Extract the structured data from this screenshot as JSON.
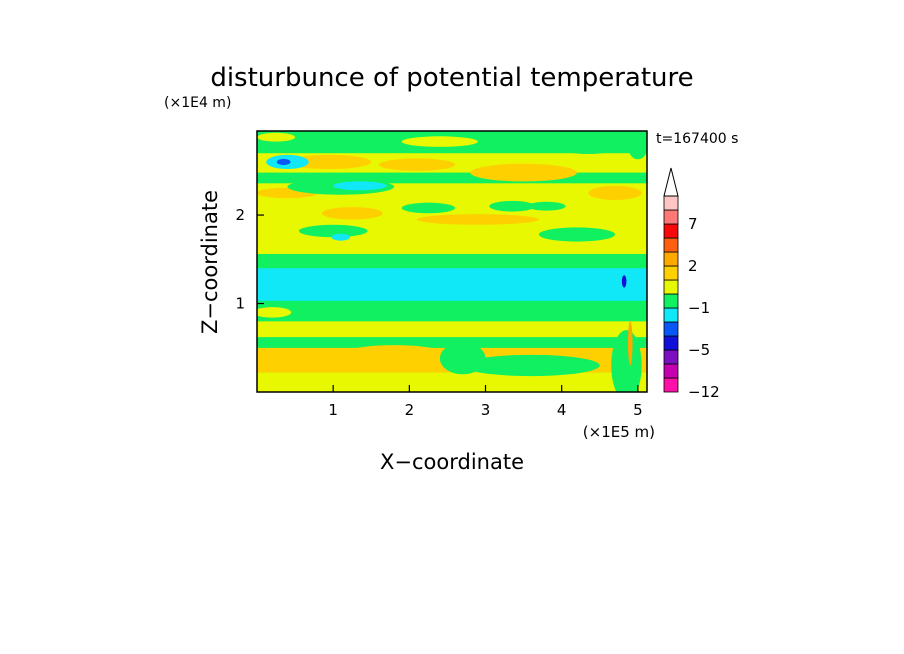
{
  "chart_data": {
    "type": "heatmap",
    "title": "disturbunce of potential temperature",
    "xlabel": "X−coordinate",
    "ylabel": "Z−coordinate",
    "x_scale_label": "(×1E5 m)",
    "y_scale_label": "(×1E4 m)",
    "time_label": "t=167400 s",
    "xlim": [
      0,
      5.12
    ],
    "ylim": [
      0,
      2.95
    ],
    "x_ticks": [
      {
        "value": 1,
        "label": "1"
      },
      {
        "value": 2,
        "label": "2"
      },
      {
        "value": 3,
        "label": "3"
      },
      {
        "value": 4,
        "label": "4"
      },
      {
        "value": 5,
        "label": "5"
      }
    ],
    "y_ticks": [
      {
        "value": 1,
        "label": "1"
      },
      {
        "value": 2,
        "label": "2"
      }
    ],
    "colorbar": {
      "extend_max": true,
      "levels": [
        {
          "color": "#ff10a8"
        },
        {
          "color": "#c400b0"
        },
        {
          "color": "#7a10c0"
        },
        {
          "color": "#1010d8"
        },
        {
          "color": "#0858f8"
        },
        {
          "color": "#10e8f8"
        },
        {
          "color": "#10f060"
        },
        {
          "color": "#e8f800"
        },
        {
          "color": "#ffd000"
        },
        {
          "color": "#ffa800"
        },
        {
          "color": "#ff6010"
        },
        {
          "color": "#f80808"
        },
        {
          "color": "#ff7878"
        },
        {
          "color": "#ffc4c4"
        }
      ],
      "tick_labels": [
        {
          "after_level": 0,
          "label": "−12"
        },
        {
          "after_level": 3,
          "label": "−5"
        },
        {
          "after_level": 6,
          "label": "−1"
        },
        {
          "after_level": 9,
          "label": "2"
        },
        {
          "after_level": 12,
          "label": "7"
        }
      ]
    },
    "bands": [
      {
        "z0": 0.0,
        "z1": 2.95,
        "color": "#10f060"
      },
      {
        "z0": 0.0,
        "z1": 0.22,
        "color": "#e8f800"
      },
      {
        "z0": 0.22,
        "z1": 0.5,
        "color": "#ffd000"
      },
      {
        "z0": 0.5,
        "z1": 0.62,
        "color": "#10f060"
      },
      {
        "z0": 0.62,
        "z1": 0.8,
        "color": "#e8f800"
      },
      {
        "z0": 0.8,
        "z1": 1.03,
        "color": "#10f060"
      },
      {
        "z0": 1.03,
        "z1": 1.4,
        "color": "#10e8f8"
      },
      {
        "z0": 1.4,
        "z1": 1.56,
        "color": "#10f060"
      },
      {
        "z0": 1.56,
        "z1": 2.36,
        "color": "#e8f800"
      },
      {
        "z0": 2.36,
        "z1": 2.48,
        "color": "#10f060"
      },
      {
        "z0": 2.48,
        "z1": 2.7,
        "color": "#e8f800"
      },
      {
        "z0": 2.7,
        "z1": 2.95,
        "color": "#10f060"
      }
    ],
    "blobs": [
      {
        "x": 0.65,
        "z": 0.4,
        "rx": 0.65,
        "rz": 0.09,
        "color": "#ffd000"
      },
      {
        "x": 1.8,
        "z": 0.45,
        "rx": 0.6,
        "rz": 0.08,
        "color": "#ffd000"
      },
      {
        "x": 3.6,
        "z": 0.3,
        "rx": 0.9,
        "rz": 0.12,
        "color": "#10f060"
      },
      {
        "x": 2.7,
        "z": 0.38,
        "rx": 0.3,
        "rz": 0.18,
        "color": "#10f060"
      },
      {
        "x": 4.85,
        "z": 0.3,
        "rx": 0.2,
        "rz": 0.4,
        "color": "#10f060"
      },
      {
        "x": 4.9,
        "z": 0.55,
        "rx": 0.03,
        "rz": 0.25,
        "color": "#ffa800"
      },
      {
        "x": 0.2,
        "z": 0.9,
        "rx": 0.25,
        "rz": 0.06,
        "color": "#e8f800"
      },
      {
        "x": 4.82,
        "z": 1.25,
        "rx": 0.03,
        "rz": 0.07,
        "color": "#1010d8"
      },
      {
        "x": 1.0,
        "z": 1.82,
        "rx": 0.45,
        "rz": 0.07,
        "color": "#10f060"
      },
      {
        "x": 1.1,
        "z": 1.75,
        "rx": 0.12,
        "rz": 0.04,
        "color": "#10e8f8"
      },
      {
        "x": 4.2,
        "z": 1.78,
        "rx": 0.5,
        "rz": 0.08,
        "color": "#10f060"
      },
      {
        "x": 1.25,
        "z": 2.02,
        "rx": 0.4,
        "rz": 0.07,
        "color": "#ffd000"
      },
      {
        "x": 2.9,
        "z": 1.95,
        "rx": 0.8,
        "rz": 0.06,
        "color": "#ffd000"
      },
      {
        "x": 2.25,
        "z": 2.08,
        "rx": 0.35,
        "rz": 0.06,
        "color": "#10f060"
      },
      {
        "x": 3.35,
        "z": 2.1,
        "rx": 0.3,
        "rz": 0.06,
        "color": "#10f060"
      },
      {
        "x": 3.8,
        "z": 2.1,
        "rx": 0.25,
        "rz": 0.05,
        "color": "#10f060"
      },
      {
        "x": 4.7,
        "z": 2.25,
        "rx": 0.35,
        "rz": 0.08,
        "color": "#ffd000"
      },
      {
        "x": 0.4,
        "z": 2.25,
        "rx": 0.4,
        "rz": 0.06,
        "color": "#ffd000"
      },
      {
        "x": 1.1,
        "z": 2.32,
        "rx": 0.7,
        "rz": 0.09,
        "color": "#10f060"
      },
      {
        "x": 1.35,
        "z": 2.33,
        "rx": 0.35,
        "rz": 0.05,
        "color": "#10e8f8"
      },
      {
        "x": 3.5,
        "z": 2.48,
        "rx": 0.7,
        "rz": 0.1,
        "color": "#ffd000"
      },
      {
        "x": 0.95,
        "z": 2.6,
        "rx": 0.55,
        "rz": 0.08,
        "color": "#ffd000"
      },
      {
        "x": 2.1,
        "z": 2.57,
        "rx": 0.5,
        "rz": 0.07,
        "color": "#ffd000"
      },
      {
        "x": 4.35,
        "z": 2.78,
        "rx": 0.45,
        "rz": 0.09,
        "color": "#10f060"
      },
      {
        "x": 0.4,
        "z": 2.6,
        "rx": 0.28,
        "rz": 0.08,
        "color": "#10e8f8"
      },
      {
        "x": 0.35,
        "z": 2.6,
        "rx": 0.09,
        "rz": 0.035,
        "color": "#0858f8"
      },
      {
        "x": 2.4,
        "z": 2.83,
        "rx": 0.5,
        "rz": 0.06,
        "color": "#e8f800"
      },
      {
        "x": 0.25,
        "z": 2.88,
        "rx": 0.25,
        "rz": 0.05,
        "color": "#e8f800"
      },
      {
        "x": 5.0,
        "z": 2.75,
        "rx": 0.12,
        "rz": 0.12,
        "color": "#10f060"
      }
    ]
  }
}
